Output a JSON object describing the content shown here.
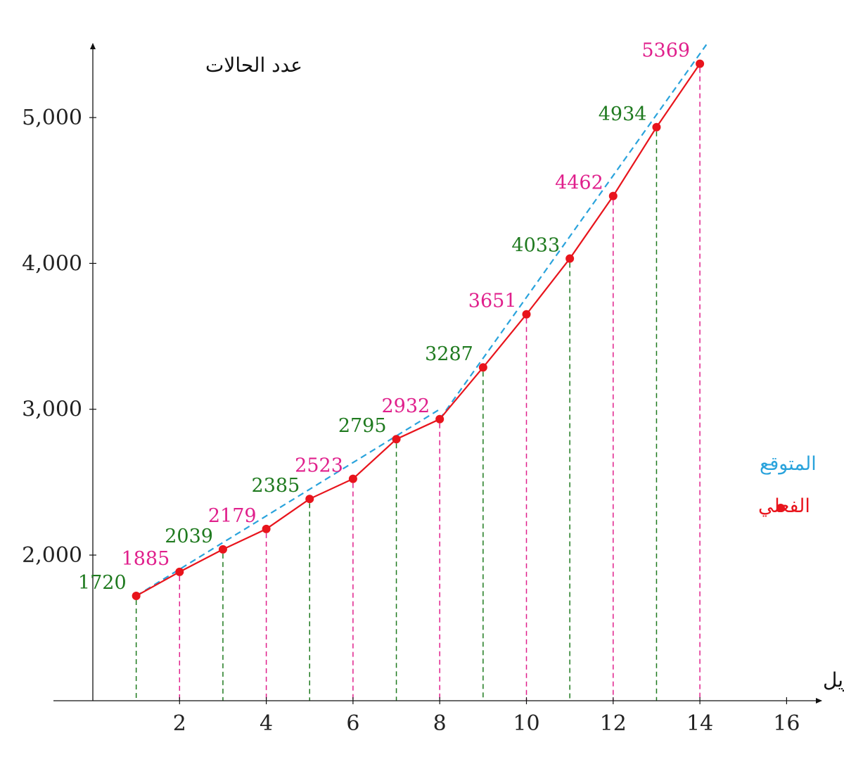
{
  "chart_data": {
    "type": "line",
    "xlabel": "إبريل",
    "ylabel": "عدد الحالات",
    "xlim": [
      0,
      16.8
    ],
    "ylim": [
      1080,
      5500
    ],
    "x_ticks": [
      2,
      4,
      6,
      8,
      10,
      12,
      14,
      16
    ],
    "y_ticks": [
      2000,
      3000,
      4000,
      5000
    ],
    "x_tick_labels": [
      "2",
      "4",
      "6",
      "8",
      "10",
      "12",
      "14",
      "16"
    ],
    "y_tick_labels": [
      "2,000",
      "3,000",
      "4,000",
      "5,000"
    ],
    "x": [
      1,
      2,
      3,
      4,
      5,
      6,
      7,
      8,
      9,
      10,
      11,
      12,
      13,
      14
    ],
    "series": [
      {
        "name": "الفعلي",
        "style": "solid line with dot markers",
        "color": "#e8141c",
        "values": [
          1720,
          1885,
          2039,
          2179,
          2385,
          2523,
          2795,
          2932,
          3287,
          3651,
          4033,
          4462,
          4934,
          5369
        ]
      },
      {
        "name": "المتوقع",
        "style": "dashed",
        "color": "#2aa3dc",
        "segments": [
          {
            "x": [
              1,
              8
            ],
            "values": [
              1720,
              3000
            ]
          },
          {
            "x": [
              8,
              14.15
            ],
            "values": [
              2932,
              5500
            ]
          }
        ]
      }
    ],
    "data_labels": [
      "1720",
      "1885",
      "2039",
      "2179",
      "2385",
      "2523",
      "2795",
      "2932",
      "3287",
      "3651",
      "4033",
      "4462",
      "4934",
      "5369"
    ],
    "label_colors": {
      "odd": "#1f7a1f",
      "even": "#e0208c"
    },
    "legend": {
      "placement": "right",
      "entries": [
        {
          "marker": "-",
          "label": "المتوقع",
          "color": "#2aa3dc"
        },
        {
          "marker": "●",
          "label": "الفعلي",
          "color": "#e8141c"
        }
      ]
    },
    "grid": false,
    "drop_lines": "dashed vertical from each point to x-axis"
  }
}
